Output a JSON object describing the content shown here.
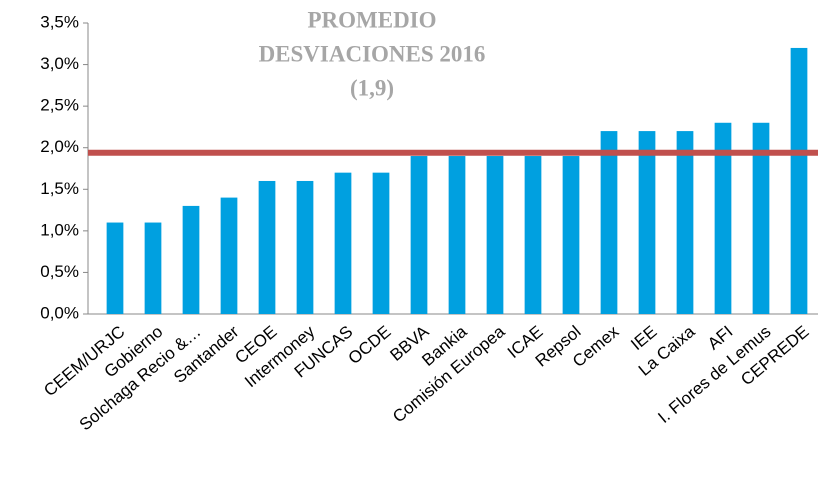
{
  "chart_data": {
    "type": "bar",
    "annotation": [
      "PROMEDIO",
      "DESVIACIONES 2016",
      "(1,9)"
    ],
    "categories": [
      "CEEM/URJC",
      "Gobierno",
      "Solchaga Recio &…",
      "Santander",
      "CEOE",
      "Intermoney",
      "FUNCAS",
      "OCDE",
      "BBVA",
      "Bankia",
      "Comisión Europea",
      "ICAE",
      "Repsol",
      "Cemex",
      "IEE",
      "La Caixa",
      "AFI",
      "I. Flores de Lemus",
      "CEPREDE"
    ],
    "values": [
      1.1,
      1.1,
      1.3,
      1.4,
      1.6,
      1.6,
      1.7,
      1.7,
      1.9,
      1.9,
      1.9,
      1.9,
      1.9,
      2.2,
      2.2,
      2.2,
      2.3,
      2.3,
      3.2
    ],
    "color": "#00a0e0",
    "average_line": {
      "value": 1.94,
      "color": "#c0504d"
    },
    "ylim": [
      0,
      3.5
    ],
    "yticks": [
      {
        "value": 0,
        "label": "0,0%"
      },
      {
        "value": 0.5,
        "label": "0,5%"
      },
      {
        "value": 1,
        "label": "1,0%"
      },
      {
        "value": 1.5,
        "label": "1,5%"
      },
      {
        "value": 2,
        "label": "2,0%"
      },
      {
        "value": 2.5,
        "label": "2,5%"
      },
      {
        "value": 3,
        "label": "3,0%"
      },
      {
        "value": 3.5,
        "label": "3,5%"
      }
    ],
    "grid": false
  }
}
